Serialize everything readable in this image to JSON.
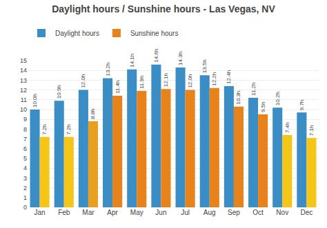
{
  "chart_data": {
    "type": "bar",
    "title": "Daylight hours / Sunshine hours - Las Vegas, NV",
    "categories": [
      "Jan",
      "Feb",
      "Mar",
      "Apr",
      "May",
      "Jun",
      "Jul",
      "Aug",
      "Sep",
      "Oct",
      "Nov",
      "Dec"
    ],
    "series": [
      {
        "name": "Daylight hours",
        "color": "#3a8dc5",
        "values": [
          10.0,
          10.9,
          12.0,
          13.2,
          14.1,
          14.6,
          14.3,
          13.5,
          12.4,
          11.2,
          10.2,
          9.7
        ],
        "value_labels": [
          "10.0h",
          "10.9h",
          "12.0h",
          "13.2h",
          "14.1h",
          "14.6h",
          "14.3h",
          "13.5h",
          "12.4h",
          "11.2h",
          "10.2h",
          "9.7h"
        ]
      },
      {
        "name": "Sunshine hours",
        "color": "#e8821a",
        "colors": [
          "#f5c518",
          "#f5c518",
          "#e8a020",
          "#e8821a",
          "#e8821a",
          "#e8821a",
          "#e8821a",
          "#e8821a",
          "#e8821a",
          "#e8821a",
          "#f5c518",
          "#f5c518"
        ],
        "values": [
          7.2,
          7.2,
          8.8,
          11.4,
          11.9,
          12.1,
          12.0,
          12.2,
          10.3,
          9.5,
          7.4,
          7.1
        ],
        "value_labels": [
          "7.2h",
          "7.2h",
          "8.8h",
          "11.4h",
          "11.9h",
          "12.1h",
          "12.0h",
          "12.2h",
          "10.3h",
          "9.5h",
          "7.4h",
          "7.1h"
        ]
      }
    ],
    "ylim": [
      0,
      15
    ],
    "yticks": [
      0,
      1,
      2,
      3,
      4,
      5,
      6,
      7,
      8,
      9,
      10,
      11,
      12,
      13,
      14,
      15
    ],
    "grid": true,
    "legend": "upper left",
    "data_labels": true
  }
}
